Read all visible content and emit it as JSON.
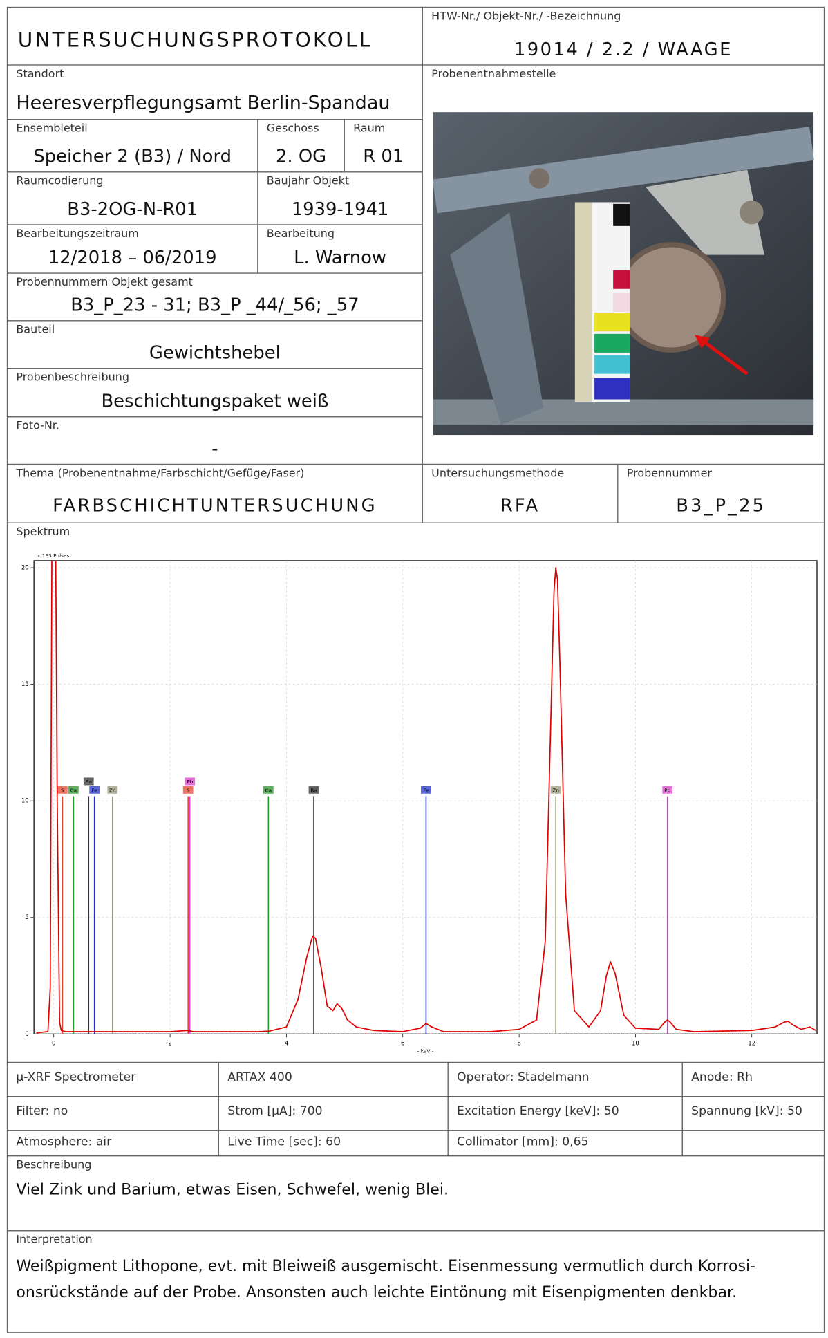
{
  "header": {
    "title": "UNTERSUCHUNGSPROTOKOLL",
    "id_label": "HTW-Nr./ Objekt-Nr./ -Bezeichnung",
    "id_value": "19014 / 2.2 / WAAGE",
    "photo_label": "Probenentnahmestelle"
  },
  "fields": [
    {
      "label": "Standort",
      "value": "Heeresverpflegungsamt Berlin-Spandau"
    },
    {
      "label": "Ensembleteil",
      "value": "Speicher 2 (B3) / Nord"
    },
    {
      "label": "Geschoss",
      "value": "2. OG"
    },
    {
      "label": "Raum",
      "value": "R 01"
    },
    {
      "label": "Raumcodierung",
      "value": "B3-2OG-N-R01"
    },
    {
      "label": "Baujahr Objekt",
      "value": "1939-1941"
    },
    {
      "label": "Bearbeitungszeitraum",
      "value": "12/2018 – 06/2019"
    },
    {
      "label": "Bearbeitung",
      "value": "L. Warnow"
    },
    {
      "label": "Probennummern Objekt gesamt",
      "value": "B3_P_23 - 31; B3_P _44/_56; _57"
    },
    {
      "label": "Bauteil",
      "value": "Gewichtshebel"
    },
    {
      "label": "Probenbeschreibung",
      "value": "Beschichtungspaket weiß"
    },
    {
      "label": "Foto-Nr.",
      "value": "-"
    },
    {
      "label": "Thema (Probenentnahme/Farbschicht/Gefüge/Faser)",
      "value": "FARBSCHICHTUNTERSUCHUNG"
    },
    {
      "label": "Untersuchungsmethode",
      "value": "RFA"
    },
    {
      "label": "Probennummer",
      "value": "B3_P_25"
    }
  ],
  "spectrum_label": "Spektrum",
  "chart_data": {
    "type": "line",
    "y_unit_label": "x 1E3 Pulses",
    "x_label": "- keV -",
    "color": "#e00000",
    "x": [
      -0.3,
      -0.1,
      -0.06,
      -0.03,
      0,
      0.03,
      0.06,
      0.1,
      0.13,
      0.2,
      0.5,
      1,
      1.5,
      2,
      2.3,
      2.4,
      3,
      3.5,
      3.7,
      4.0,
      4.2,
      4.35,
      4.45,
      4.5,
      4.6,
      4.7,
      4.8,
      4.87,
      4.95,
      5.05,
      5.2,
      5.5,
      6.0,
      6.3,
      6.4,
      6.5,
      6.7,
      7.5,
      8.0,
      8.3,
      8.45,
      8.55,
      8.6,
      8.63,
      8.66,
      8.7,
      8.8,
      8.95,
      9.2,
      9.4,
      9.5,
      9.57,
      9.65,
      9.8,
      10.0,
      10.4,
      10.5,
      10.55,
      10.6,
      10.7,
      11.0,
      12.0,
      12.4,
      12.55,
      12.62,
      12.7,
      12.85,
      13.0,
      13.1
    ],
    "values": [
      0.05,
      0.1,
      2,
      22,
      25,
      22,
      10,
      0.5,
      0.15,
      0.1,
      0.1,
      0.1,
      0.1,
      0.1,
      0.15,
      0.1,
      0.1,
      0.1,
      0.12,
      0.3,
      1.5,
      3.3,
      4.2,
      4.1,
      2.8,
      1.2,
      1.0,
      1.3,
      1.1,
      0.6,
      0.3,
      0.15,
      0.1,
      0.25,
      0.45,
      0.3,
      0.1,
      0.1,
      0.2,
      0.6,
      4,
      14,
      19,
      20,
      19.5,
      16,
      6,
      1,
      0.3,
      1,
      2.5,
      3.1,
      2.6,
      0.8,
      0.25,
      0.2,
      0.5,
      0.6,
      0.5,
      0.2,
      0.1,
      0.15,
      0.3,
      0.5,
      0.55,
      0.4,
      0.2,
      0.3,
      0.15
    ],
    "xlim": [
      -0.34,
      13.12
    ],
    "ylim": [
      0,
      20.3
    ],
    "xticks": [
      0,
      2,
      4,
      6,
      8,
      10,
      12
    ],
    "yticks": [
      0,
      5,
      10,
      15,
      20
    ],
    "grid": true,
    "markers": [
      {
        "label": "S",
        "x": 0.15,
        "y": 10.2,
        "color": "#e8452c"
      },
      {
        "label": "Ca",
        "x": 0.34,
        "y": 10.2,
        "color": "#2a9a2a"
      },
      {
        "label": "Fe",
        "x": 0.7,
        "y": 10.2,
        "color": "#2233cc"
      },
      {
        "label": "Ba",
        "x": 0.6,
        "y": 10.2,
        "color": "#333333"
      },
      {
        "label": "Zn",
        "x": 1.01,
        "y": 10.2,
        "color": "#9a9a7a"
      },
      {
        "label": "S",
        "x": 2.31,
        "y": 10.2,
        "color": "#e8452c"
      },
      {
        "label": "Pb",
        "x": 2.34,
        "y": 10.2,
        "color": "#e040d0"
      },
      {
        "label": "Ca",
        "x": 3.69,
        "y": 10.2,
        "color": "#2a9a2a"
      },
      {
        "label": "Ba",
        "x": 4.47,
        "y": 10.2,
        "color": "#333333"
      },
      {
        "label": "Fe",
        "x": 6.4,
        "y": 10.2,
        "color": "#2233cc"
      },
      {
        "label": "Zn",
        "x": 8.63,
        "y": 10.2,
        "color": "#9a9a7a"
      },
      {
        "label": "Pb",
        "x": 10.55,
        "y": 10.2,
        "color": "#e040d0"
      }
    ]
  },
  "measurement_table": {
    "rows": [
      [
        "µ-XRF Spectrometer",
        "ARTAX 400",
        "Operator: Stadelmann",
        "Anode: Rh"
      ],
      [
        "Filter: no",
        "Strom  [µA]: 700",
        "Excitation  Energy [keV]: 50",
        "Spannung [kV]: 50"
      ],
      [
        "Atmosphere: air",
        "Live Time  [sec]: 60",
        "Collimator [mm]: 0,65",
        null
      ]
    ]
  },
  "description": {
    "label": "Beschreibung",
    "text": "Viel Zink und Barium, etwas Eisen, Schwefel, wenig Blei."
  },
  "interpretation": {
    "label": "Interpretation",
    "text": "Weißpigment Lithopone, evt. mit Bleiweiß ausgemischt. Eisenmessung vermutlich durch Korrosi­onsrückstände auf der Probe. Ansonsten auch leichte Eintönung mit Eisenpigmenten denkbar."
  }
}
